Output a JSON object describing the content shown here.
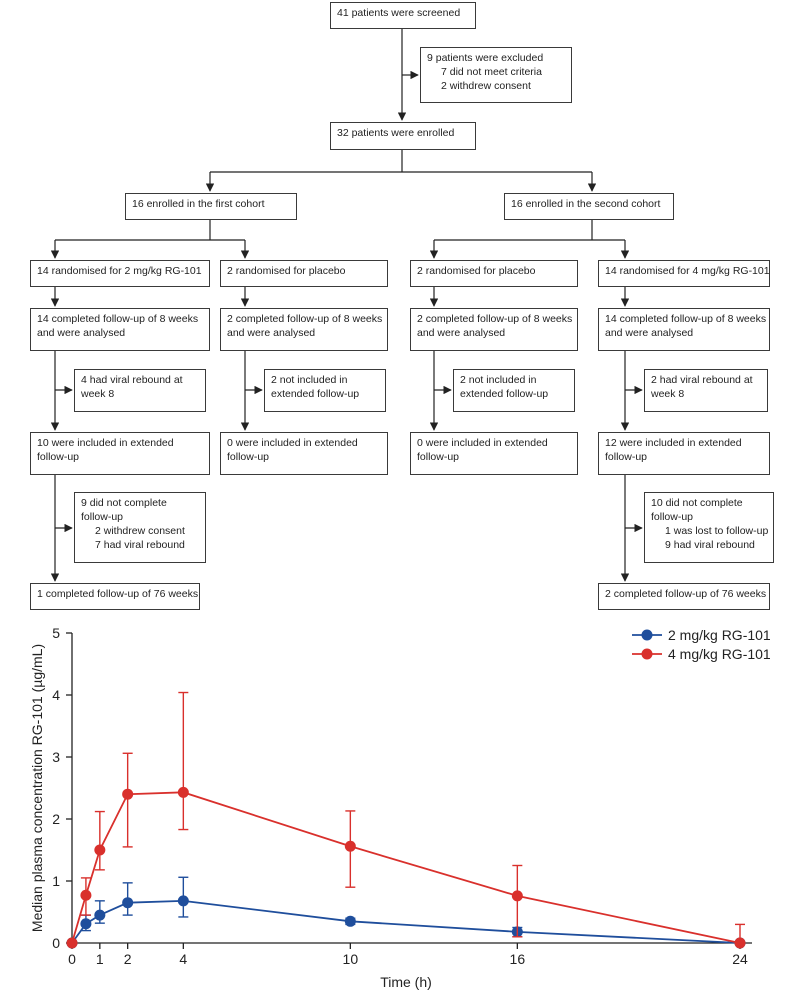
{
  "flowchart": {
    "screened": "41 patients were screened",
    "excluded": [
      "9 patients were excluded",
      "7 did not meet criteria",
      "2 withdrew consent"
    ],
    "enrolled": "32 patients were enrolled",
    "cohort1": {
      "title": "16 enrolled in the first cohort",
      "drug_arm": {
        "randomised": "14 randomised for 2 mg/kg RG-101",
        "completed_8w": [
          "14 completed follow-up of 8 weeks",
          "and were analysed"
        ],
        "rebound": [
          "4 had viral rebound at",
          "week 8"
        ],
        "extended": [
          "10 were included in extended",
          "follow-up"
        ],
        "not_completed": [
          "9 did not complete",
          "follow-up",
          "2 withdrew consent",
          "7 had viral rebound"
        ],
        "completed_76w": "1 completed follow-up of 76 weeks"
      },
      "placebo_arm": {
        "randomised": "2 randomised for placebo",
        "completed_8w": [
          "2 completed follow-up of 8 weeks",
          "and were analysed"
        ],
        "not_included": [
          "2 not included in",
          "extended follow-up"
        ],
        "extended": [
          "0 were included in extended",
          "follow-up"
        ]
      }
    },
    "cohort2": {
      "title": "16 enrolled in the second cohort",
      "placebo_arm": {
        "randomised": "2 randomised for placebo",
        "completed_8w": [
          "2 completed follow-up of 8 weeks",
          "and were analysed"
        ],
        "not_included": [
          "2 not included in",
          "extended follow-up"
        ],
        "extended": [
          "0 were included in extended",
          "follow-up"
        ]
      },
      "drug_arm": {
        "randomised": "14 randomised for 4 mg/kg RG-101",
        "completed_8w": [
          "14 completed follow-up of 8 weeks",
          "and were analysed"
        ],
        "rebound": [
          "2 had viral rebound at",
          "week 8"
        ],
        "extended": [
          "12 were included in extended",
          "follow-up"
        ],
        "not_completed": [
          "10 did not complete",
          "follow-up",
          "1 was lost to follow-up",
          "9 had viral rebound"
        ],
        "completed_76w": "2 completed follow-up of 76 weeks"
      }
    }
  },
  "chart_data": {
    "type": "line",
    "xlabel": "Time (h)",
    "ylabel": "Median plasma concentration RG-101 (µg/mL)",
    "xlim": [
      0,
      24
    ],
    "ylim": [
      0,
      5
    ],
    "xticks": [
      0,
      1,
      2,
      4,
      10,
      16,
      24
    ],
    "yticks": [
      0,
      1,
      2,
      3,
      4,
      5
    ],
    "legend_position": "top-right",
    "grid": false,
    "series": [
      {
        "name": "2 mg/kg RG-101",
        "color": "#1f4e9c",
        "x": [
          0,
          0.5,
          1,
          2,
          4,
          10,
          16,
          24
        ],
        "y": [
          0,
          0.31,
          0.45,
          0.65,
          0.68,
          0.35,
          0.18,
          0.0
        ],
        "err_low": [
          0,
          0.2,
          0.32,
          0.45,
          0.42,
          0.3,
          0.1,
          0.0
        ],
        "err_high": [
          0,
          0.45,
          0.68,
          0.97,
          1.06,
          0.4,
          0.25,
          0.0
        ]
      },
      {
        "name": "4 mg/kg RG-101",
        "color": "#d9302c",
        "x": [
          0,
          0.5,
          1,
          2,
          4,
          10,
          16,
          24
        ],
        "y": [
          0,
          0.77,
          1.5,
          2.4,
          2.43,
          1.56,
          0.76,
          0.0
        ],
        "err_low": [
          0,
          0.45,
          1.18,
          1.55,
          1.83,
          0.9,
          0.1,
          0.0
        ],
        "err_high": [
          0,
          1.05,
          2.12,
          3.06,
          4.04,
          2.13,
          1.25,
          0.3
        ]
      }
    ]
  }
}
